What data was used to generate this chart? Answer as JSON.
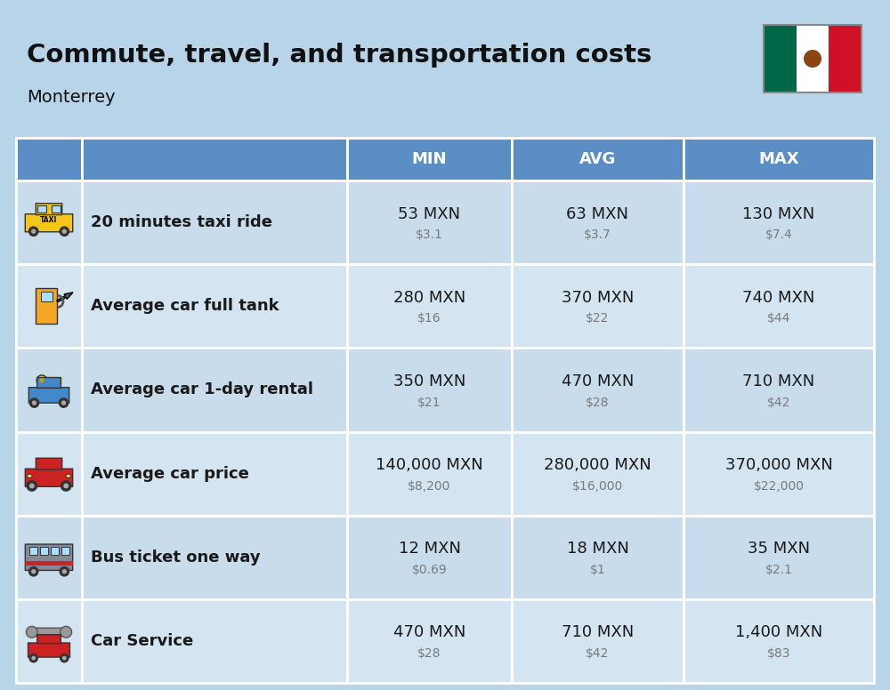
{
  "title": "Commute, travel, and transportation costs",
  "subtitle": "Monterrey",
  "background_color": "#b8d4e8",
  "header_color": "#5b8ec4",
  "header_text_color": "#ffffff",
  "row_bg_even": "#c8dcec",
  "row_bg_odd": "#d4e4f0",
  "cell_border_color": "#ffffff",
  "columns": [
    "MIN",
    "AVG",
    "MAX"
  ],
  "rows": [
    {
      "label": "20 minutes taxi ride",
      "min_mxn": "53 MXN",
      "min_usd": "$3.1",
      "avg_mxn": "63 MXN",
      "avg_usd": "$3.7",
      "max_mxn": "130 MXN",
      "max_usd": "$7.4"
    },
    {
      "label": "Average car full tank",
      "min_mxn": "280 MXN",
      "min_usd": "$16",
      "avg_mxn": "370 MXN",
      "avg_usd": "$22",
      "max_mxn": "740 MXN",
      "max_usd": "$44"
    },
    {
      "label": "Average car 1-day rental",
      "min_mxn": "350 MXN",
      "min_usd": "$21",
      "avg_mxn": "470 MXN",
      "avg_usd": "$28",
      "max_mxn": "710 MXN",
      "max_usd": "$42"
    },
    {
      "label": "Average car price",
      "min_mxn": "140,000 MXN",
      "min_usd": "$8,200",
      "avg_mxn": "280,000 MXN",
      "avg_usd": "$16,000",
      "max_mxn": "370,000 MXN",
      "max_usd": "$22,000"
    },
    {
      "label": "Bus ticket one way",
      "min_mxn": "12 MXN",
      "min_usd": "$0.69",
      "avg_mxn": "18 MXN",
      "avg_usd": "$1",
      "max_mxn": "35 MXN",
      "max_usd": "$2.1"
    },
    {
      "label": "Car Service",
      "min_mxn": "470 MXN",
      "min_usd": "$28",
      "avg_mxn": "710 MXN",
      "avg_usd": "$42",
      "max_mxn": "1,400 MXN",
      "max_usd": "$83"
    }
  ],
  "title_fontsize": 21,
  "subtitle_fontsize": 14,
  "header_fontsize": 13,
  "label_fontsize": 13,
  "value_fontsize": 13,
  "usd_fontsize": 10
}
